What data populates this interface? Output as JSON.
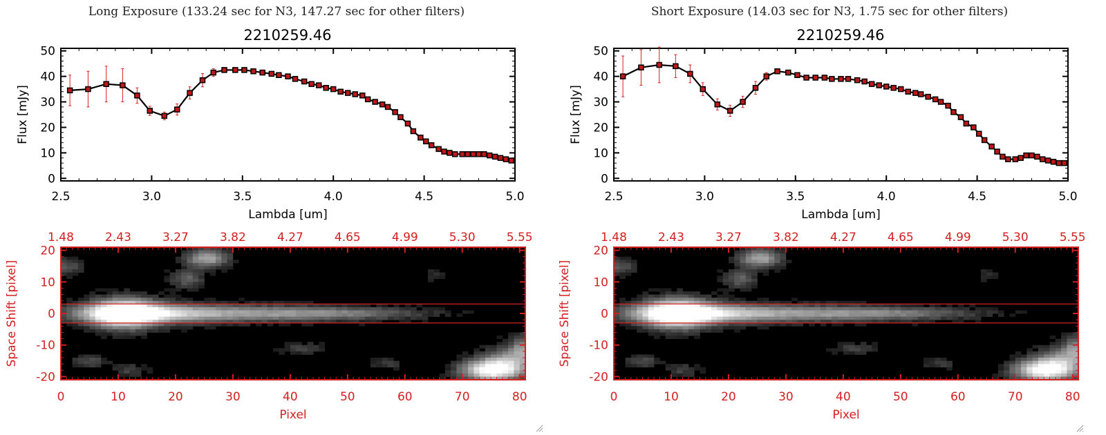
{
  "colors": {
    "accent_red": "#d42020",
    "spectrum_line": "#000000",
    "marker_fill": "#c01818",
    "axis": "#000000",
    "image_bg": "#000000"
  },
  "panels": [
    {
      "id": "long",
      "header": "Long Exposure (133.24 sec for N3, 147.27 sec for other filters)",
      "chart_data": {
        "type": "line",
        "title": "2210259.46",
        "xlabel": "Lambda [um]",
        "ylabel": "Flux [mJy]",
        "xlim": [
          2.5,
          5.0
        ],
        "ylim": [
          -1,
          51
        ],
        "xticks": [
          2.5,
          3.0,
          3.5,
          4.0,
          4.5,
          5.0
        ],
        "xtick_labels": [
          "2.5",
          "3.0",
          "3.5",
          "4.0",
          "4.5",
          "5.0"
        ],
        "yticks": [
          0,
          10,
          20,
          30,
          40,
          50
        ],
        "ytick_labels": [
          "0",
          "10",
          "20",
          "30",
          "40",
          "50"
        ],
        "series": [
          {
            "x": [
              2.55,
              2.65,
              2.75,
              2.84,
              2.92,
              2.99,
              3.07,
              3.14,
              3.21,
              3.28,
              3.34,
              3.4,
              3.46,
              3.51,
              3.56,
              3.61,
              3.66,
              3.7,
              3.75,
              3.79,
              3.84,
              3.88,
              3.92,
              3.96,
              4.0,
              4.04,
              4.08,
              4.12,
              4.16,
              4.19,
              4.23,
              4.27,
              4.3,
              4.34,
              4.37,
              4.41,
              4.44,
              4.48,
              4.51,
              4.54,
              4.58,
              4.61,
              4.64,
              4.67,
              4.71,
              4.74,
              4.77,
              4.8,
              4.83,
              4.86,
              4.89,
              4.92,
              4.95,
              4.98
            ],
            "y": [
              34.5,
              35,
              37,
              36.5,
              32.5,
              26.5,
              24.5,
              27,
              33.5,
              38.5,
              41.5,
              42.5,
              42.5,
              42.5,
              42,
              41.5,
              41,
              40.5,
              40,
              39,
              38,
              37,
              36.5,
              35.5,
              35,
              34,
              33.5,
              33,
              32.5,
              31,
              30,
              29,
              28,
              26,
              24,
              21.5,
              18.5,
              16,
              14.5,
              13,
              11.5,
              10.5,
              10,
              9.5,
              9.5,
              9.5,
              9.5,
              9.5,
              9.5,
              9,
              8.5,
              8,
              7.5,
              7
            ],
            "err": [
              6,
              7,
              7,
              6.5,
              3,
              1.8,
              1.5,
              2.2,
              2.4,
              2.6,
              1.5,
              1,
              0.8,
              0.6,
              0.5,
              0.5,
              0.5,
              0.5,
              0.5,
              0.5,
              0.5,
              0.5,
              0.5,
              0.5,
              0.5,
              0.5,
              0.5,
              0.5,
              0.5,
              0.5,
              0.5,
              0.5,
              0.6,
              0.6,
              0.6,
              0.6,
              0.6,
              0.6,
              0.6,
              0.6,
              0.6,
              0.6,
              0.6,
              0.6,
              0.6,
              0.6,
              0.6,
              0.6,
              0.6,
              0.6,
              0.6,
              0.6,
              0.6,
              0.6
            ]
          }
        ]
      },
      "image_data": {
        "type": "heatmap",
        "xlabel": "Pixel",
        "ylabel": "Space Shift [pixel]",
        "xlim": [
          0,
          81
        ],
        "ylim": [
          -21,
          21
        ],
        "xticks": [
          0,
          10,
          20,
          30,
          40,
          50,
          60,
          70,
          80
        ],
        "xtick_labels": [
          "0",
          "10",
          "20",
          "30",
          "40",
          "50",
          "60",
          "70",
          "80"
        ],
        "yticks": [
          -20,
          -10,
          0,
          10,
          20
        ],
        "ytick_labels": [
          "-20",
          "-10",
          "0",
          "10",
          "20"
        ],
        "top_ticks": [
          0,
          10,
          20,
          30,
          40,
          50,
          60,
          70,
          80
        ],
        "top_tick_labels": [
          "1.48",
          "2.43",
          "3.27",
          "3.82",
          "4.27",
          "4.65",
          "4.99",
          "5.30",
          "5.55"
        ],
        "aperture": [
          -3,
          3
        ],
        "blobs": [
          {
            "x": 11,
            "y": 0,
            "sx": 4,
            "sy": 3.2,
            "a": 1.0
          },
          {
            "x": 14,
            "y": 0,
            "sx": 8,
            "sy": 2.2,
            "a": 0.55
          },
          {
            "x": 30,
            "y": 0,
            "sx": 16,
            "sy": 1.8,
            "a": 0.5
          },
          {
            "x": 50,
            "y": 0,
            "sx": 10,
            "sy": 1.2,
            "a": 0.22
          },
          {
            "x": 25.5,
            "y": 17.5,
            "sx": 2.5,
            "sy": 2,
            "a": 0.6
          },
          {
            "x": 22,
            "y": 11,
            "sx": 2,
            "sy": 2,
            "a": 0.3
          },
          {
            "x": 1,
            "y": 15,
            "sx": 2,
            "sy": 2,
            "a": 0.25
          },
          {
            "x": 75,
            "y": -18,
            "sx": 3.5,
            "sy": 2.3,
            "a": 1.0
          },
          {
            "x": 78,
            "y": -15,
            "sx": 3,
            "sy": 3,
            "a": 0.45
          },
          {
            "x": 80.5,
            "y": -11,
            "sx": 1.5,
            "sy": 3,
            "a": 0.4
          },
          {
            "x": 5,
            "y": -15,
            "sx": 2,
            "sy": 1.5,
            "a": 0.22
          },
          {
            "x": 12,
            "y": -18,
            "sx": 2,
            "sy": 1.5,
            "a": 0.18
          },
          {
            "x": 42,
            "y": -11,
            "sx": 2.5,
            "sy": 1.2,
            "a": 0.2
          },
          {
            "x": 65,
            "y": 12,
            "sx": 1.5,
            "sy": 1.5,
            "a": 0.12
          },
          {
            "x": 57,
            "y": -16,
            "sx": 2,
            "sy": 1.5,
            "a": 0.15
          }
        ]
      }
    },
    {
      "id": "short",
      "header": "Short Exposure (14.03 sec for N3, 1.75 sec for other filters)",
      "chart_data": {
        "type": "line",
        "title": "2210259.46",
        "xlabel": "Lambda [um]",
        "ylabel": "Flux [mJy]",
        "xlim": [
          2.5,
          5.0
        ],
        "ylim": [
          -1,
          51
        ],
        "xticks": [
          2.5,
          3.0,
          3.5,
          4.0,
          4.5,
          5.0
        ],
        "xtick_labels": [
          "2.5",
          "3.0",
          "3.5",
          "4.0",
          "4.5",
          "5.0"
        ],
        "yticks": [
          0,
          10,
          20,
          30,
          40,
          50
        ],
        "ytick_labels": [
          "0",
          "10",
          "20",
          "30",
          "40",
          "50"
        ],
        "series": [
          {
            "x": [
              2.55,
              2.65,
              2.75,
              2.84,
              2.92,
              2.99,
              3.07,
              3.14,
              3.21,
              3.28,
              3.34,
              3.4,
              3.46,
              3.51,
              3.56,
              3.61,
              3.66,
              3.7,
              3.75,
              3.79,
              3.84,
              3.88,
              3.92,
              3.96,
              4.0,
              4.04,
              4.08,
              4.12,
              4.16,
              4.19,
              4.23,
              4.27,
              4.3,
              4.34,
              4.37,
              4.41,
              4.44,
              4.48,
              4.51,
              4.54,
              4.58,
              4.61,
              4.64,
              4.67,
              4.71,
              4.74,
              4.77,
              4.8,
              4.83,
              4.86,
              4.89,
              4.92,
              4.95,
              4.98
            ],
            "y": [
              40,
              43.5,
              44.5,
              44,
              41,
              35,
              29,
              26.5,
              30,
              35.5,
              40,
              42,
              41.5,
              40.5,
              39.5,
              39.5,
              39.5,
              39,
              39,
              39,
              38.5,
              38,
              37,
              36.5,
              36,
              35.5,
              35,
              34,
              33.5,
              33,
              32,
              31,
              30,
              28.5,
              26,
              24,
              21.5,
              20,
              17.5,
              15,
              12.5,
              10.5,
              8.5,
              7.5,
              7.5,
              8,
              9,
              9,
              8.5,
              7.5,
              7,
              6.5,
              6,
              6
            ],
            "err": [
              8,
              7,
              7,
              4.5,
              3.5,
              2.5,
              2.2,
              2.2,
              2.2,
              2.5,
              1.5,
              1,
              0.8,
              0.6,
              0.5,
              0.5,
              0.5,
              0.5,
              0.5,
              0.5,
              0.5,
              0.5,
              0.5,
              0.5,
              0.5,
              0.5,
              0.5,
              0.5,
              0.5,
              0.5,
              0.5,
              0.5,
              0.6,
              0.6,
              0.6,
              0.6,
              0.6,
              0.6,
              0.6,
              0.6,
              0.6,
              0.6,
              0.6,
              0.6,
              0.6,
              0.6,
              0.6,
              0.6,
              0.6,
              0.6,
              0.6,
              0.6,
              0.6,
              0.6
            ]
          }
        ]
      },
      "image_data": {
        "type": "heatmap",
        "xlabel": "Pixel",
        "ylabel": "Space Shift [pixel]",
        "xlim": [
          0,
          81
        ],
        "ylim": [
          -21,
          21
        ],
        "xticks": [
          0,
          10,
          20,
          30,
          40,
          50,
          60,
          70,
          80
        ],
        "xtick_labels": [
          "0",
          "10",
          "20",
          "30",
          "40",
          "50",
          "60",
          "70",
          "80"
        ],
        "yticks": [
          -20,
          -10,
          0,
          10,
          20
        ],
        "ytick_labels": [
          "-20",
          "-10",
          "0",
          "10",
          "20"
        ],
        "top_ticks": [
          0,
          10,
          20,
          30,
          40,
          50,
          60,
          70,
          80
        ],
        "top_tick_labels": [
          "1.48",
          "2.43",
          "3.27",
          "3.82",
          "4.27",
          "4.65",
          "4.99",
          "5.30",
          "5.55"
        ],
        "aperture": [
          -3,
          3
        ],
        "blobs": [
          {
            "x": 11,
            "y": 0,
            "sx": 4,
            "sy": 3.2,
            "a": 1.0
          },
          {
            "x": 14,
            "y": 0,
            "sx": 8,
            "sy": 2.2,
            "a": 0.55
          },
          {
            "x": 30,
            "y": 0,
            "sx": 16,
            "sy": 1.8,
            "a": 0.5
          },
          {
            "x": 50,
            "y": 0,
            "sx": 10,
            "sy": 1.2,
            "a": 0.22
          },
          {
            "x": 25.5,
            "y": 17.5,
            "sx": 2.5,
            "sy": 2,
            "a": 0.6
          },
          {
            "x": 22,
            "y": 11,
            "sx": 2,
            "sy": 2,
            "a": 0.3
          },
          {
            "x": 1,
            "y": 15,
            "sx": 2,
            "sy": 2,
            "a": 0.25
          },
          {
            "x": 75,
            "y": -18,
            "sx": 3.5,
            "sy": 2.3,
            "a": 1.0
          },
          {
            "x": 78,
            "y": -15,
            "sx": 3,
            "sy": 3,
            "a": 0.45
          },
          {
            "x": 80.5,
            "y": -11,
            "sx": 1.5,
            "sy": 3,
            "a": 0.4
          },
          {
            "x": 5,
            "y": -15,
            "sx": 2,
            "sy": 1.5,
            "a": 0.22
          },
          {
            "x": 12,
            "y": -18,
            "sx": 2,
            "sy": 1.5,
            "a": 0.18
          },
          {
            "x": 42,
            "y": -11,
            "sx": 2.5,
            "sy": 1.2,
            "a": 0.2
          },
          {
            "x": 65,
            "y": 12,
            "sx": 1.5,
            "sy": 1.5,
            "a": 0.12
          },
          {
            "x": 57,
            "y": -16,
            "sx": 2,
            "sy": 1.5,
            "a": 0.15
          }
        ]
      }
    }
  ]
}
